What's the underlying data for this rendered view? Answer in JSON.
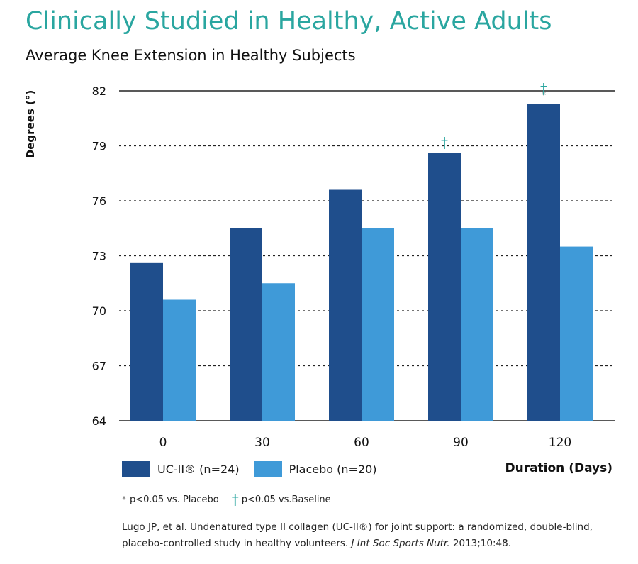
{
  "title": "Clinically Studied in Healthy, Active Adults",
  "subtitle": "Average Knee Extension in Healthy Subjects",
  "legend": {
    "series1": "UC-II® (n=24)",
    "series2": "Placebo (n=20)",
    "xlabel": "Duration (Days)"
  },
  "footnote": {
    "star_symbol": "*",
    "star_text": "p<0.05 vs. Placebo",
    "dagger_symbol": "†",
    "dagger_text": "p<0.05 vs.Baseline"
  },
  "citation": {
    "part1": "Lugo JP, et al. Undenatured type II collagen (UC-II®) for joint support: a randomized, double-blind, placebo-controlled study in healthy volunteers.",
    "journal": "J Int Soc Sports Nutr.",
    "part2": "2013;10:48."
  },
  "chart_data": {
    "type": "bar",
    "title": "Average Knee Extension in Healthy Subjects",
    "xlabel": "Duration (Days)",
    "ylabel": "Degrees (°)",
    "categories": [
      "0",
      "30",
      "60",
      "90",
      "120"
    ],
    "ylim": [
      64,
      82
    ],
    "yticks": [
      64,
      67,
      70,
      73,
      76,
      79,
      82
    ],
    "grid": "dotted horizontal",
    "legend_position": "bottom-left",
    "series": [
      {
        "name": "UC-II® (n=24)",
        "color": "#1f4e8c",
        "values": [
          72.6,
          74.5,
          76.6,
          78.6,
          81.3
        ]
      },
      {
        "name": "Placebo (n=20)",
        "color": "#3f9ad8",
        "values": [
          70.6,
          71.5,
          74.5,
          74.5,
          73.5
        ]
      }
    ],
    "annotations": [
      {
        "category": "90",
        "series": "UC-II® (n=24)",
        "symbols": [
          "†"
        ]
      },
      {
        "category": "120",
        "series": "UC-II® (n=24)",
        "symbols": [
          "†",
          "*"
        ]
      }
    ]
  }
}
